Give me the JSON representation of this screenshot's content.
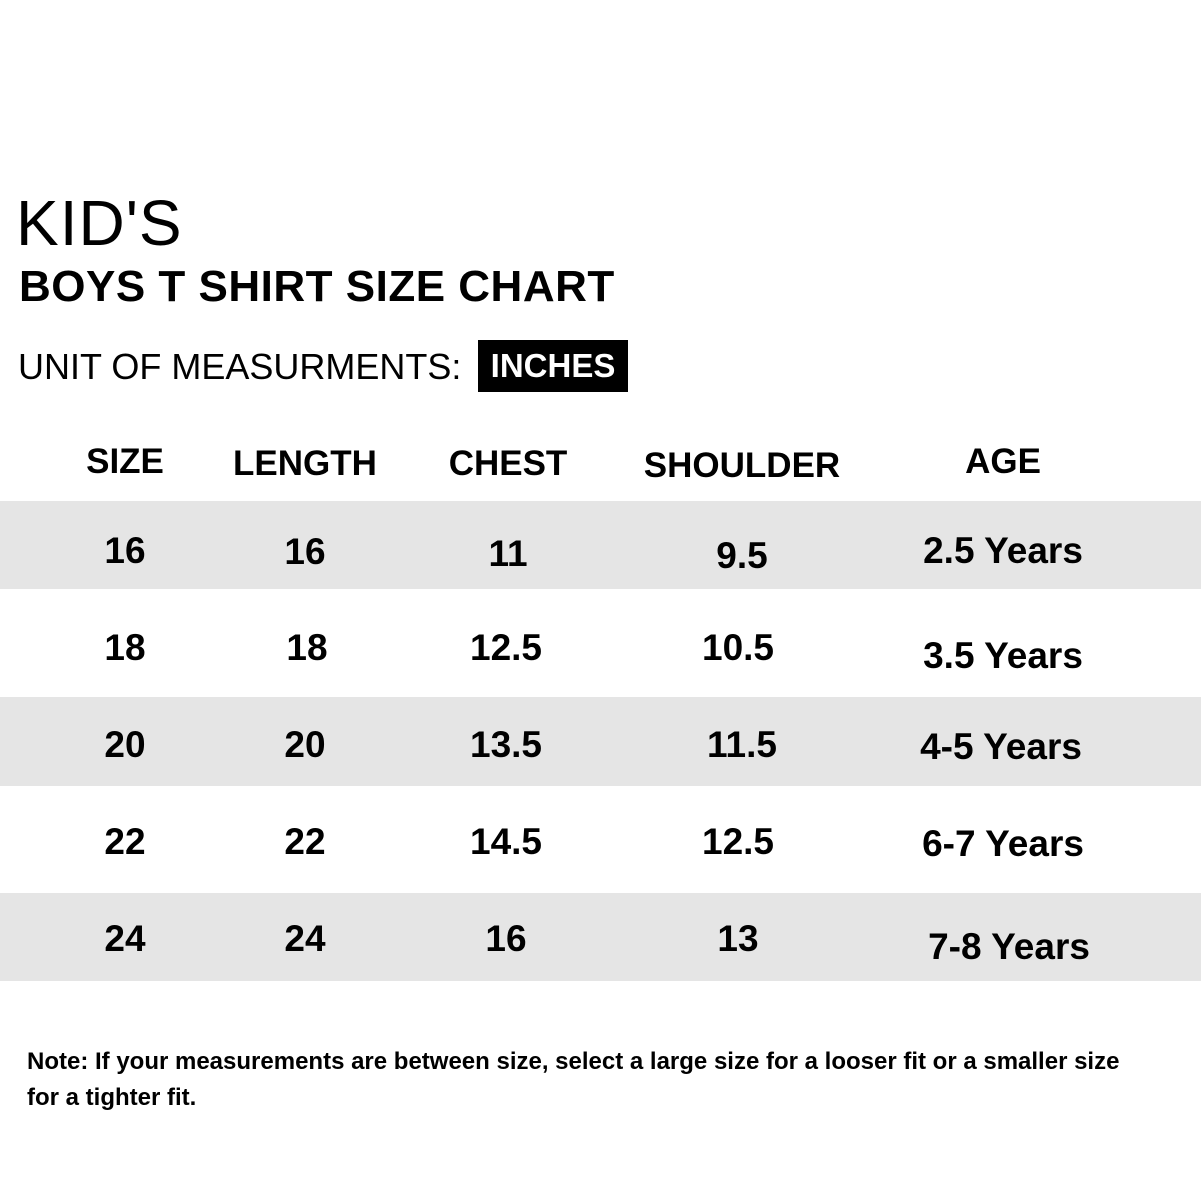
{
  "heading": {
    "kids": "KID'S",
    "title": "BOYS T SHIRT SIZE CHART"
  },
  "unit": {
    "label": "UNIT OF MEASURMENTS:",
    "value": "INCHES"
  },
  "table": {
    "columns": [
      "SIZE",
      "LENGTH",
      "CHEST",
      "SHOULDER",
      "AGE"
    ],
    "rows": [
      [
        "16",
        "16",
        "11",
        "9.5",
        "2.5 Years"
      ],
      [
        "18",
        "18",
        "12.5",
        "10.5",
        "3.5 Years"
      ],
      [
        "20",
        "20",
        "13.5",
        "11.5",
        "4-5 Years"
      ],
      [
        "22",
        "22",
        "14.5",
        "12.5",
        "6-7 Years"
      ],
      [
        "24",
        "24",
        "16",
        "13",
        "7-8 Years"
      ]
    ]
  },
  "note": "Note: If your measurements are between size, select a large size for a looser fit or a smaller size for a tighter fit.",
  "colors": {
    "band": "#e5e5e5",
    "badge": "#000000",
    "text": "#000000"
  }
}
